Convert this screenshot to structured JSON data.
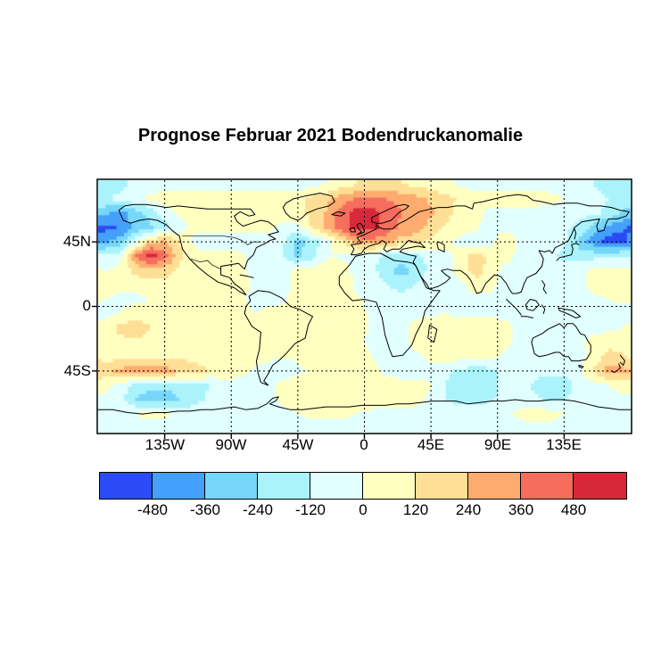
{
  "title": "Prognose Februar 2021 Bodendruckanomalie",
  "map": {
    "y_tick_labels": [
      "45N",
      "0",
      "45S"
    ],
    "x_tick_labels": [
      "135W",
      "90W",
      "45W",
      "0",
      "45E",
      "90E",
      "135E"
    ]
  },
  "colorbar": {
    "tick_labels": [
      "-480",
      "-360",
      "-240",
      "-120",
      "0",
      "120",
      "240",
      "360",
      "480"
    ],
    "colors": [
      "#2a4bf5",
      "#44a0fa",
      "#76d6fa",
      "#aaf3fc",
      "#e1ffff",
      "#ffffc0",
      "#ffdf96",
      "#ffab70",
      "#f66d5e",
      "#d62839"
    ]
  },
  "chart_data": {
    "type": "heatmap",
    "subtype": "filled-contour-world-map",
    "title": "Prognose Februar 2021 Bodendruckanomalie",
    "projection": "equirectangular",
    "lon_range": [
      -180,
      180
    ],
    "lat_range": [
      -88,
      88
    ],
    "gridline_lons": [
      -135,
      -90,
      -45,
      0,
      45,
      90,
      135
    ],
    "gridline_lats": [
      45,
      0,
      -45
    ],
    "bin_edges": [
      -480,
      -360,
      -240,
      -120,
      0,
      120,
      240,
      360,
      480
    ],
    "palette": [
      "#2a4bf5",
      "#44a0fa",
      "#76d6fa",
      "#aaf3fc",
      "#e1ffff",
      "#ffffc0",
      "#ffdf96",
      "#ffab70",
      "#f66d5e",
      "#d62839"
    ],
    "grid": {
      "lon_center_start": -175,
      "lon_step": 10,
      "lat_center_start": 85,
      "lat_step": -10,
      "values": [
        [
          -180,
          -150,
          -90,
          -60,
          -60,
          -60,
          -60,
          -60,
          -60,
          -60,
          -60,
          -60,
          -60,
          -60,
          -30,
          0,
          60,
          120,
          150,
          150,
          120,
          90,
          60,
          30,
          -30,
          -60,
          -60,
          -60,
          -60,
          -60,
          -60,
          -60,
          -90,
          -120,
          -150,
          -180
        ],
        [
          -120,
          -90,
          -30,
          30,
          60,
          80,
          80,
          80,
          80,
          80,
          80,
          80,
          60,
          80,
          150,
          220,
          300,
          360,
          380,
          360,
          320,
          280,
          220,
          160,
          100,
          80,
          70,
          60,
          60,
          60,
          50,
          0,
          -60,
          -90,
          -120,
          -150
        ],
        [
          -350,
          -400,
          -300,
          -200,
          -60,
          30,
          70,
          80,
          80,
          80,
          80,
          80,
          60,
          60,
          160,
          260,
          430,
          560,
          540,
          440,
          360,
          320,
          260,
          170,
          80,
          30,
          -30,
          -50,
          -50,
          -50,
          -50,
          -50,
          -60,
          -90,
          -150,
          -260
        ],
        [
          -520,
          -460,
          -330,
          -260,
          -160,
          -50,
          40,
          60,
          60,
          60,
          50,
          40,
          -30,
          -40,
          140,
          290,
          430,
          540,
          530,
          430,
          330,
          300,
          200,
          90,
          50,
          20,
          -40,
          -60,
          -60,
          -60,
          -70,
          -80,
          -160,
          -280,
          -400,
          -470
        ],
        [
          -380,
          -300,
          -80,
          200,
          260,
          120,
          -40,
          -80,
          -90,
          -80,
          -70,
          -70,
          -90,
          -300,
          -180,
          -40,
          120,
          290,
          310,
          290,
          190,
          170,
          80,
          40,
          -40,
          -60,
          -60,
          140,
          -40,
          -60,
          -60,
          -90,
          -280,
          -430,
          -550,
          -520
        ],
        [
          -90,
          -40,
          360,
          560,
          420,
          160,
          60,
          60,
          60,
          40,
          -40,
          -60,
          -120,
          -260,
          -160,
          0,
          -20,
          -60,
          -80,
          -160,
          -200,
          -160,
          -80,
          -40,
          60,
          190,
          90,
          50,
          -40,
          -60,
          -70,
          -160,
          -180,
          -160,
          -140,
          -120
        ],
        [
          0,
          30,
          160,
          220,
          180,
          80,
          60,
          60,
          60,
          60,
          -40,
          -60,
          -40,
          40,
          60,
          80,
          60,
          -40,
          -80,
          -200,
          -300,
          -200,
          -80,
          -40,
          40,
          190,
          70,
          -40,
          -60,
          -60,
          -60,
          -60,
          -40,
          40,
          60,
          50
        ],
        [
          40,
          20,
          30,
          60,
          60,
          40,
          40,
          50,
          60,
          60,
          -30,
          -50,
          -40,
          60,
          80,
          80,
          60,
          -30,
          -60,
          -120,
          -160,
          -120,
          -60,
          -40,
          -30,
          60,
          30,
          -40,
          -60,
          -60,
          -60,
          -50,
          -50,
          60,
          80,
          60
        ],
        [
          0,
          -20,
          -30,
          0,
          30,
          30,
          30,
          40,
          60,
          40,
          -30,
          -40,
          -20,
          40,
          70,
          80,
          60,
          20,
          -30,
          -60,
          -80,
          -60,
          -40,
          -40,
          -40,
          -30,
          -30,
          -40,
          -60,
          -60,
          -50,
          -40,
          -40,
          -30,
          0,
          20
        ],
        [
          -40,
          0,
          60,
          80,
          80,
          70,
          70,
          70,
          60,
          30,
          0,
          30,
          40,
          60,
          80,
          90,
          80,
          40,
          -20,
          -40,
          -40,
          -30,
          -20,
          0,
          -30,
          -40,
          -40,
          -40,
          -50,
          -50,
          -40,
          -30,
          -30,
          -40,
          -50,
          -40
        ],
        [
          60,
          160,
          200,
          120,
          80,
          80,
          80,
          80,
          70,
          60,
          60,
          80,
          80,
          80,
          90,
          90,
          80,
          50,
          -20,
          -40,
          -30,
          40,
          80,
          90,
          80,
          80,
          80,
          60,
          -40,
          -50,
          -40,
          -30,
          -40,
          -40,
          -30,
          0
        ],
        [
          60,
          80,
          90,
          80,
          80,
          80,
          80,
          80,
          70,
          60,
          60,
          70,
          80,
          80,
          80,
          80,
          70,
          30,
          -30,
          -40,
          -30,
          40,
          80,
          90,
          90,
          80,
          70,
          40,
          -40,
          -50,
          -50,
          -40,
          -20,
          40,
          80,
          70
        ],
        [
          70,
          80,
          90,
          100,
          100,
          90,
          80,
          70,
          60,
          60,
          50,
          30,
          0,
          30,
          60,
          70,
          70,
          60,
          0,
          -40,
          -50,
          -20,
          40,
          60,
          60,
          50,
          30,
          -30,
          -60,
          -70,
          -60,
          -50,
          -40,
          40,
          160,
          140
        ],
        [
          190,
          280,
          320,
          320,
          300,
          220,
          180,
          120,
          70,
          40,
          -20,
          -60,
          -70,
          -40,
          60,
          80,
          80,
          70,
          40,
          -40,
          -80,
          -70,
          -50,
          -80,
          -160,
          -180,
          -160,
          -80,
          -60,
          -80,
          -90,
          -80,
          -40,
          140,
          300,
          280
        ],
        [
          40,
          -40,
          -160,
          -220,
          -220,
          -180,
          -160,
          -120,
          -60,
          -40,
          -40,
          -30,
          30,
          80,
          90,
          90,
          90,
          90,
          80,
          70,
          70,
          60,
          0,
          -120,
          -200,
          -200,
          -180,
          -80,
          -60,
          -140,
          -200,
          -180,
          -80,
          -40,
          0,
          40
        ],
        [
          -40,
          -80,
          -240,
          -300,
          -300,
          -240,
          -160,
          -100,
          -60,
          -50,
          -40,
          -30,
          20,
          70,
          80,
          80,
          80,
          80,
          70,
          60,
          50,
          40,
          -30,
          -120,
          -160,
          -160,
          -140,
          -80,
          -60,
          -100,
          -140,
          -120,
          -60,
          -40,
          -30,
          -30
        ],
        [
          -50,
          -40,
          0,
          40,
          30,
          -30,
          -50,
          -50,
          -50,
          -50,
          -50,
          -40,
          -30,
          0,
          30,
          30,
          20,
          0,
          -30,
          -40,
          -40,
          -40,
          -40,
          -50,
          -50,
          -40,
          -30,
          -20,
          30,
          60,
          50,
          0,
          -40,
          -50,
          -50,
          -50
        ],
        [
          -50,
          -50,
          -50,
          -50,
          -50,
          -50,
          -50,
          -50,
          -50,
          -50,
          -50,
          -50,
          -50,
          -50,
          -50,
          -50,
          -50,
          -50,
          -50,
          -50,
          -50,
          -50,
          -50,
          -50,
          -50,
          -50,
          -50,
          -50,
          -50,
          -50,
          -50,
          -50,
          -50,
          -50,
          -50,
          -50
        ]
      ]
    },
    "features": [
      {
        "region": "North Atlantic / Scandinavia (55-70N, 20W-40E)",
        "peak_value": "> +480"
      },
      {
        "region": "Northeast Pacific (~35N, 150W)",
        "peak_value": "> +480"
      },
      {
        "region": "Gulf of Alaska / Bering Sea (55-65N, 180-150W)",
        "peak_value": "< -480"
      },
      {
        "region": "Northwest Pacific east of Japan (45-52N, 155E-180)",
        "peak_value": "< -480"
      },
      {
        "region": "Central North Atlantic (~40N, 45W)",
        "peak_value": "about -300"
      },
      {
        "region": "Northeast Africa (15-25N, 15-35E)",
        "peak_value": "about -300"
      },
      {
        "region": "South Pacific (~45S, 165-130W)",
        "peak_value": "about +300"
      },
      {
        "region": "New Zealand (~45S, 170E)",
        "peak_value": "about +300"
      },
      {
        "region": "Subtropical bands and Indian Ocean",
        "peak_value": "+60 to +120"
      },
      {
        "region": "Southern Ocean Pacific sector (~60S)",
        "peak_value": "about -300"
      }
    ]
  }
}
